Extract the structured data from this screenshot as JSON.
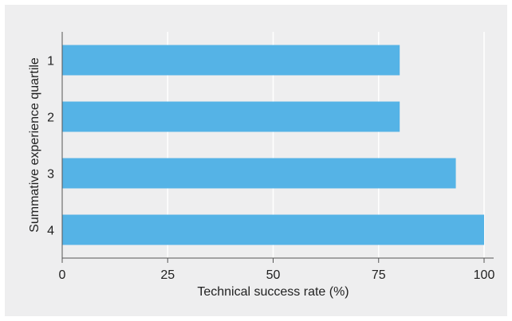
{
  "chart_data": {
    "type": "bar",
    "orientation": "horizontal",
    "categories": [
      "1",
      "2",
      "3",
      "4"
    ],
    "values": [
      80,
      80,
      93.3,
      100
    ],
    "xlabel": "Technical success rate (%)",
    "ylabel": "Summative experience quartile",
    "xlim": [
      0,
      100
    ],
    "xticks": [
      "0",
      "25",
      "50",
      "75",
      "100"
    ],
    "grid": "vertical",
    "colors": {
      "bar": "#55b3e6",
      "background": "#eeeeef",
      "gridline": "#ffffff",
      "axis": "#555555"
    }
  }
}
